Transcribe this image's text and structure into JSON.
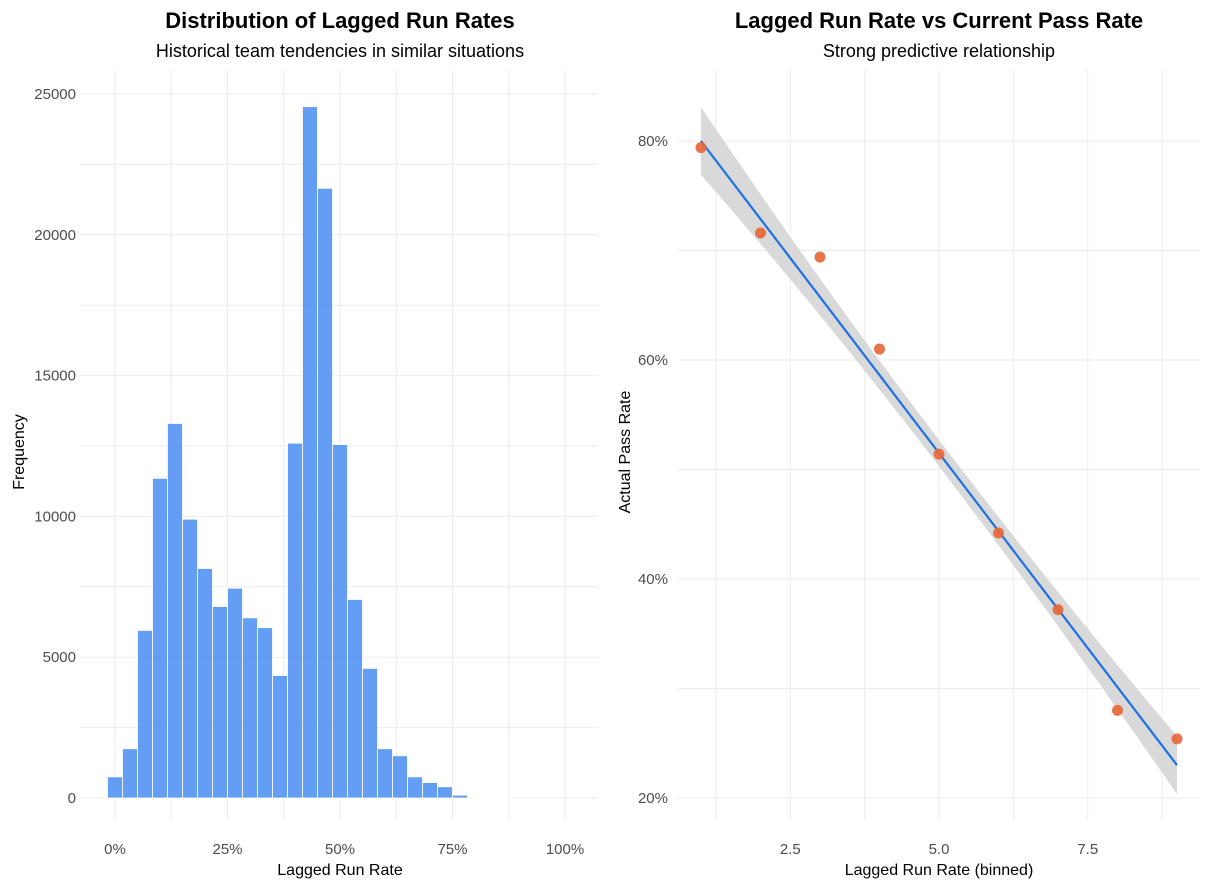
{
  "chart_data": [
    {
      "type": "bar",
      "title": "Distribution of Lagged Run Rates",
      "subtitle": "Historical team tendencies in similar situations",
      "xlabel": "Lagged Run Rate",
      "ylabel": "Frequency",
      "xlim": [
        0,
        1
      ],
      "ylim": [
        0,
        25000
      ],
      "x_ticks": [
        0,
        0.25,
        0.5,
        0.75,
        1.0
      ],
      "x_tick_labels": [
        "0%",
        "25%",
        "50%",
        "75%",
        "100%"
      ],
      "y_ticks": [
        0,
        5000,
        10000,
        15000,
        20000,
        25000
      ],
      "y_tick_labels": [
        "0",
        "5000",
        "10000",
        "15000",
        "20000",
        "25000"
      ],
      "bin_width": 0.0333,
      "bin_centers": [
        0.0,
        0.0333,
        0.0667,
        0.1,
        0.1333,
        0.1667,
        0.2,
        0.2333,
        0.2667,
        0.3,
        0.3333,
        0.3667,
        0.4,
        0.4333,
        0.4667,
        0.5,
        0.5333,
        0.5667,
        0.6,
        0.6333,
        0.6667,
        0.7,
        0.7333,
        0.7667,
        0.8,
        0.8333,
        0.8667
      ],
      "values": [
        750,
        1750,
        5950,
        11350,
        13300,
        9900,
        8150,
        6800,
        7450,
        6400,
        6050,
        4350,
        12600,
        24550,
        21650,
        12550,
        7050,
        4600,
        1750,
        1500,
        750,
        550,
        400,
        100,
        30,
        10,
        5
      ],
      "color": "#4f8ff2",
      "grid": true
    },
    {
      "type": "scatter",
      "title": "Lagged Run Rate vs Current Pass Rate",
      "subtitle": "Strong predictive relationship",
      "xlabel": "Lagged Run Rate (binned)",
      "ylabel": "Actual Pass Rate",
      "xlim": [
        0.8,
        9.4
      ],
      "ylim": [
        0.18,
        0.86
      ],
      "x_ticks": [
        2.5,
        5.0,
        7.5
      ],
      "x_tick_labels": [
        "2.5",
        "5.0",
        "7.5"
      ],
      "y_ticks": [
        0.2,
        0.4,
        0.6,
        0.8
      ],
      "y_tick_labels": [
        "20%",
        "40%",
        "60%",
        "80%"
      ],
      "x": [
        1,
        2,
        3,
        4,
        5,
        6,
        7,
        8,
        9
      ],
      "y": [
        0.794,
        0.716,
        0.694,
        0.61,
        0.514,
        0.442,
        0.372,
        0.28,
        0.254
      ],
      "fit_line": {
        "x": [
          1,
          9
        ],
        "y": [
          0.8,
          0.23
        ]
      },
      "fit_band": {
        "x": [
          1,
          9
        ],
        "lower": [
          0.772,
          0.205
        ],
        "upper": [
          0.834,
          0.258
        ]
      },
      "point_color": "#e8683a",
      "line_color": "#1f6fe5",
      "band_color": "#d9d9d9",
      "grid": true
    }
  ]
}
